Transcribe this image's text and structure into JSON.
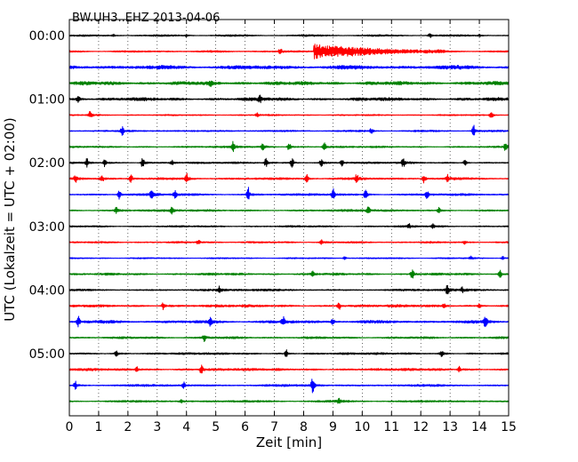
{
  "chart_data": {
    "type": "line",
    "title": "BW.UH3..EHZ 2013-04-06",
    "xlabel": "Zeit  [min]",
    "ylabel": "UTC (Lokalzeit = UTC + 02:00)",
    "xlim": [
      0,
      15
    ],
    "x_ticks": [
      "0",
      "1",
      "2",
      "3",
      "4",
      "5",
      "6",
      "7",
      "8",
      "9",
      "10",
      "11",
      "12",
      "13",
      "14",
      "15"
    ],
    "y_ticks": [
      {
        "label": "00:00",
        "row": 0
      },
      {
        "label": "01:00",
        "row": 4
      },
      {
        "label": "02:00",
        "row": 8
      },
      {
        "label": "03:00",
        "row": 12
      },
      {
        "label": "04:00",
        "row": 16
      },
      {
        "label": "05:00",
        "row": 20
      }
    ],
    "row_minutes": 15,
    "rows_total": 24,
    "grid": "vertical-dotted",
    "colors": [
      "#000000",
      "#ff0000",
      "#0000ff",
      "#008000"
    ],
    "traces": [
      {
        "start": "00:00",
        "color": "#000000",
        "noise": 0.25,
        "events": [
          {
            "t": 1.5,
            "amp": 0.35
          },
          {
            "t": 4.0,
            "amp": 0.35
          },
          {
            "t": 12.3,
            "amp": 0.6
          },
          {
            "t": 14.0,
            "amp": 0.35
          }
        ]
      },
      {
        "start": "00:15",
        "color": "#ff0000",
        "noise": 0.25,
        "events": [
          {
            "t": 7.2,
            "amp": 0.9
          },
          {
            "t": 8.35,
            "amp": 1.9,
            "coda": 4.5
          }
        ]
      },
      {
        "start": "00:30",
        "color": "#0000ff",
        "noise": 0.55,
        "events": []
      },
      {
        "start": "00:45",
        "color": "#008000",
        "noise": 0.5,
        "events": [
          {
            "t": 4.8,
            "amp": 0.6
          }
        ]
      },
      {
        "start": "01:00",
        "color": "#000000",
        "noise": 0.45,
        "events": [
          {
            "t": 0.3,
            "amp": 0.8
          },
          {
            "t": 6.5,
            "amp": 0.8
          }
        ]
      },
      {
        "start": "01:15",
        "color": "#ff0000",
        "noise": 0.2,
        "events": [
          {
            "t": 0.7,
            "amp": 1.0
          },
          {
            "t": 6.4,
            "amp": 0.5
          },
          {
            "t": 14.4,
            "amp": 1.2
          }
        ]
      },
      {
        "start": "01:30",
        "color": "#0000ff",
        "noise": 0.25,
        "events": [
          {
            "t": 1.8,
            "amp": 1.0
          },
          {
            "t": 10.3,
            "amp": 0.6
          },
          {
            "t": 13.8,
            "amp": 1.3
          }
        ]
      },
      {
        "start": "01:45",
        "color": "#008000",
        "noise": 0.25,
        "events": [
          {
            "t": 5.6,
            "amp": 1.4
          },
          {
            "t": 6.6,
            "amp": 1.1
          },
          {
            "t": 7.5,
            "amp": 1.2
          },
          {
            "t": 8.7,
            "amp": 1.0
          },
          {
            "t": 14.9,
            "amp": 1.2
          }
        ]
      },
      {
        "start": "02:00",
        "color": "#000000",
        "noise": 0.25,
        "events": [
          {
            "t": 0.6,
            "amp": 1.3
          },
          {
            "t": 1.2,
            "amp": 1.0
          },
          {
            "t": 2.5,
            "amp": 1.4
          },
          {
            "t": 3.5,
            "amp": 0.9
          },
          {
            "t": 6.7,
            "amp": 1.1
          },
          {
            "t": 7.6,
            "amp": 1.2
          },
          {
            "t": 8.6,
            "amp": 0.9
          },
          {
            "t": 9.3,
            "amp": 1.0
          },
          {
            "t": 11.4,
            "amp": 1.3
          },
          {
            "t": 13.5,
            "amp": 0.8
          }
        ]
      },
      {
        "start": "02:15",
        "color": "#ff0000",
        "noise": 0.3,
        "events": [
          {
            "t": 0.2,
            "amp": 1.0
          },
          {
            "t": 1.1,
            "amp": 1.2
          },
          {
            "t": 2.1,
            "amp": 1.0
          },
          {
            "t": 4.0,
            "amp": 1.5
          },
          {
            "t": 8.1,
            "amp": 1.3
          },
          {
            "t": 9.8,
            "amp": 1.2
          },
          {
            "t": 12.1,
            "amp": 1.2
          },
          {
            "t": 12.9,
            "amp": 1.0
          }
        ]
      },
      {
        "start": "02:30",
        "color": "#0000ff",
        "noise": 0.3,
        "events": [
          {
            "t": 1.7,
            "amp": 1.2
          },
          {
            "t": 2.8,
            "amp": 1.0
          },
          {
            "t": 3.6,
            "amp": 1.0
          },
          {
            "t": 6.1,
            "amp": 1.6
          },
          {
            "t": 9.0,
            "amp": 1.3
          },
          {
            "t": 10.1,
            "amp": 1.5
          },
          {
            "t": 12.2,
            "amp": 1.1
          }
        ]
      },
      {
        "start": "02:45",
        "color": "#008000",
        "noise": 0.3,
        "events": [
          {
            "t": 1.6,
            "amp": 0.8
          },
          {
            "t": 3.5,
            "amp": 0.7
          },
          {
            "t": 10.2,
            "amp": 1.0
          },
          {
            "t": 12.6,
            "amp": 0.7
          }
        ]
      },
      {
        "start": "03:00",
        "color": "#000000",
        "noise": 0.25,
        "events": [
          {
            "t": 11.6,
            "amp": 0.5
          },
          {
            "t": 12.4,
            "amp": 0.5
          }
        ]
      },
      {
        "start": "03:15",
        "color": "#ff0000",
        "noise": 0.25,
        "events": [
          {
            "t": 4.4,
            "amp": 0.7
          },
          {
            "t": 8.6,
            "amp": 0.5
          },
          {
            "t": 13.5,
            "amp": 0.4
          }
        ]
      },
      {
        "start": "03:30",
        "color": "#0000ff",
        "noise": 0.2,
        "events": [
          {
            "t": 9.4,
            "amp": 0.4
          },
          {
            "t": 13.7,
            "amp": 0.4
          },
          {
            "t": 14.8,
            "amp": 0.5
          }
        ]
      },
      {
        "start": "03:45",
        "color": "#008000",
        "noise": 0.3,
        "events": [
          {
            "t": 8.3,
            "amp": 0.6
          },
          {
            "t": 11.7,
            "amp": 1.3
          },
          {
            "t": 14.7,
            "amp": 0.8
          }
        ]
      },
      {
        "start": "04:00",
        "color": "#000000",
        "noise": 0.3,
        "events": [
          {
            "t": 5.1,
            "amp": 0.8
          },
          {
            "t": 12.9,
            "amp": 1.2
          },
          {
            "t": 13.4,
            "amp": 0.6
          }
        ]
      },
      {
        "start": "04:15",
        "color": "#ff0000",
        "noise": 0.35,
        "events": [
          {
            "t": 3.2,
            "amp": 0.9
          },
          {
            "t": 9.2,
            "amp": 1.0
          },
          {
            "t": 12.8,
            "amp": 0.7
          },
          {
            "t": 14.0,
            "amp": 0.5
          }
        ]
      },
      {
        "start": "04:30",
        "color": "#0000ff",
        "noise": 0.4,
        "events": [
          {
            "t": 0.3,
            "amp": 1.2
          },
          {
            "t": 4.8,
            "amp": 0.9
          },
          {
            "t": 7.3,
            "amp": 1.2
          },
          {
            "t": 9.0,
            "amp": 1.0
          },
          {
            "t": 14.2,
            "amp": 1.3
          }
        ]
      },
      {
        "start": "04:45",
        "color": "#008000",
        "noise": 0.3,
        "events": [
          {
            "t": 4.6,
            "amp": 0.8
          }
        ]
      },
      {
        "start": "05:00",
        "color": "#000000",
        "noise": 0.3,
        "events": [
          {
            "t": 1.6,
            "amp": 0.7
          },
          {
            "t": 7.4,
            "amp": 1.0
          },
          {
            "t": 12.7,
            "amp": 0.8
          }
        ]
      },
      {
        "start": "05:15",
        "color": "#ff0000",
        "noise": 0.35,
        "events": [
          {
            "t": 2.3,
            "amp": 0.7
          },
          {
            "t": 4.5,
            "amp": 1.1
          },
          {
            "t": 13.3,
            "amp": 0.8
          }
        ]
      },
      {
        "start": "05:30",
        "color": "#0000ff",
        "noise": 0.3,
        "events": [
          {
            "t": 0.2,
            "amp": 1.0
          },
          {
            "t": 3.9,
            "amp": 0.7
          },
          {
            "t": 8.3,
            "amp": 2.2
          }
        ]
      },
      {
        "start": "05:45",
        "color": "#008000",
        "noise": 0.3,
        "events": [
          {
            "t": 3.8,
            "amp": 0.5
          },
          {
            "t": 9.2,
            "amp": 0.5
          }
        ]
      }
    ]
  }
}
